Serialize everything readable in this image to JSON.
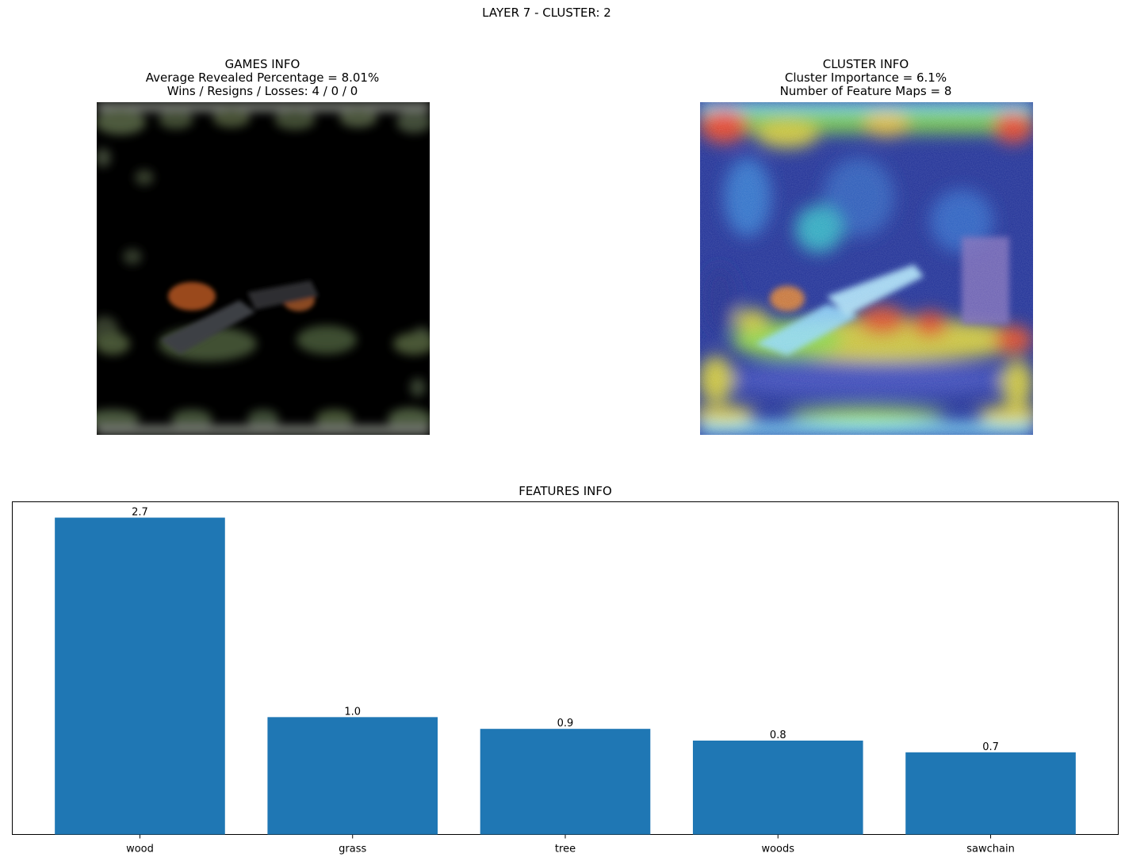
{
  "suptitle": "LAYER 7 - CLUSTER: 2",
  "games_info": {
    "heading": "GAMES INFO",
    "line1": "Average Revealed Percentage = 8.01%",
    "line2": "Wins / Resigns / Losses: 4 / 0 / 0"
  },
  "cluster_info": {
    "heading": "CLUSTER INFO",
    "line1": "Cluster Importance = 6.1%",
    "line2": "Number of Feature Maps = 8"
  },
  "chart_data": {
    "type": "bar",
    "title": "FEATURES INFO",
    "categories": [
      "wood",
      "grass",
      "tree",
      "woods",
      "sawchain"
    ],
    "values": [
      2.7,
      1.0,
      0.9,
      0.8,
      0.7
    ],
    "value_labels": [
      "2.7",
      "1.0",
      "0.9",
      "0.8",
      "0.7"
    ],
    "ylim": [
      0,
      2.835
    ],
    "color": "#1f77b4",
    "grid": false
  }
}
